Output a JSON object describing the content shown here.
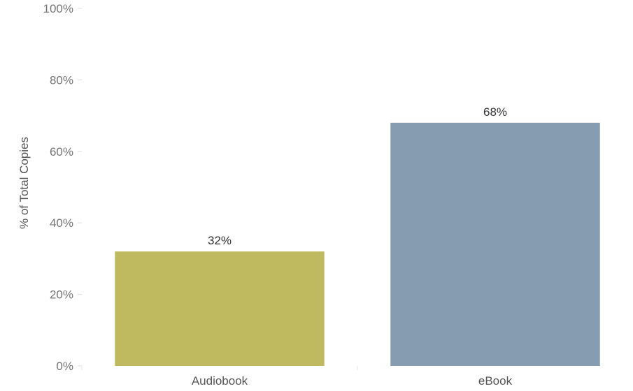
{
  "chart_data": {
    "type": "bar",
    "categories": [
      "Audiobook",
      "eBook"
    ],
    "values": [
      32,
      68
    ],
    "value_labels": [
      "32%",
      "68%"
    ],
    "colors": [
      "#bfba60",
      "#869cb0"
    ],
    "ylabel": "% of Total Copies",
    "xlabel": "",
    "title": "",
    "ylim": [
      0,
      100
    ],
    "yticks": [
      0,
      20,
      40,
      60,
      80,
      100
    ],
    "ytick_labels": [
      "0%",
      "20%",
      "40%",
      "60%",
      "80%",
      "100%"
    ],
    "grid": false,
    "legend": "none"
  }
}
